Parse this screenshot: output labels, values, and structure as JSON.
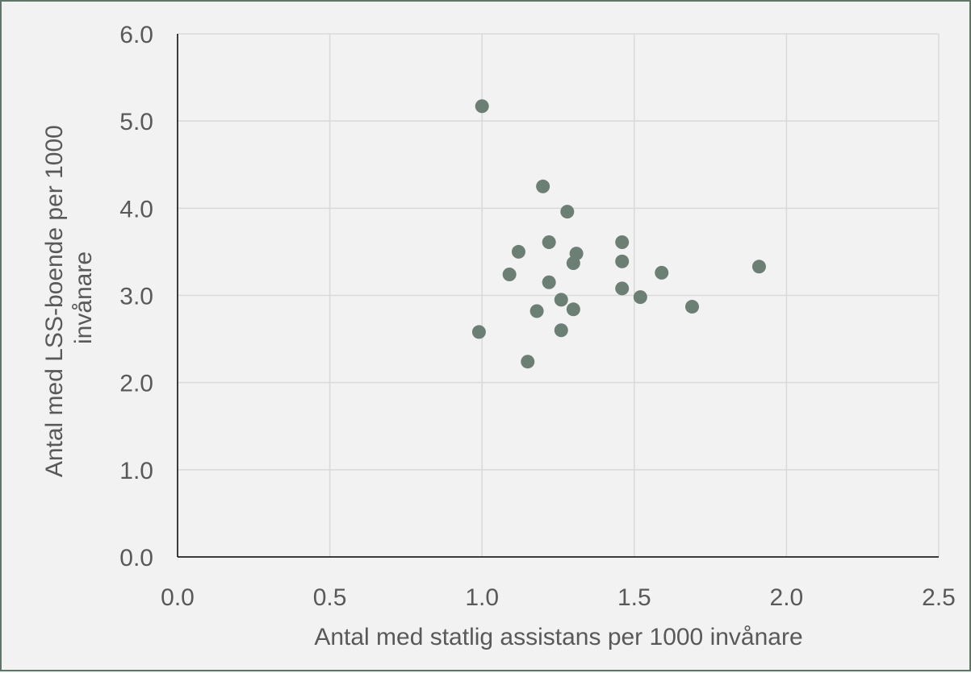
{
  "chart_data": {
    "type": "scatter",
    "title": "",
    "xlabel": "Antal med statlig assistans per 1000 invånare",
    "ylabel_lines": [
      "Antal med LSS-boende per 1000",
      "invånare"
    ],
    "xlim": [
      0,
      2.5
    ],
    "ylim": [
      0,
      6
    ],
    "x_ticks": [
      "0.0",
      "0.5",
      "1.0",
      "1.5",
      "2.0",
      "2.5"
    ],
    "y_ticks": [
      "0.0",
      "1.0",
      "2.0",
      "3.0",
      "4.0",
      "5.0",
      "6.0"
    ],
    "grid": true,
    "legend": "none",
    "marker_color": "#6b7f75",
    "points": [
      {
        "x": 1.0,
        "y": 5.17
      },
      {
        "x": 1.2,
        "y": 4.25
      },
      {
        "x": 1.28,
        "y": 3.96
      },
      {
        "x": 1.22,
        "y": 3.61
      },
      {
        "x": 1.46,
        "y": 3.61
      },
      {
        "x": 1.12,
        "y": 3.5
      },
      {
        "x": 1.31,
        "y": 3.48
      },
      {
        "x": 1.46,
        "y": 3.39
      },
      {
        "x": 1.3,
        "y": 3.37
      },
      {
        "x": 1.91,
        "y": 3.33
      },
      {
        "x": 1.59,
        "y": 3.26
      },
      {
        "x": 1.09,
        "y": 3.24
      },
      {
        "x": 1.22,
        "y": 3.15
      },
      {
        "x": 1.46,
        "y": 3.08
      },
      {
        "x": 1.52,
        "y": 2.98
      },
      {
        "x": 1.26,
        "y": 2.95
      },
      {
        "x": 1.69,
        "y": 2.87
      },
      {
        "x": 1.3,
        "y": 2.84
      },
      {
        "x": 1.18,
        "y": 2.82
      },
      {
        "x": 1.26,
        "y": 2.6
      },
      {
        "x": 0.99,
        "y": 2.58
      },
      {
        "x": 1.15,
        "y": 2.24
      }
    ]
  }
}
